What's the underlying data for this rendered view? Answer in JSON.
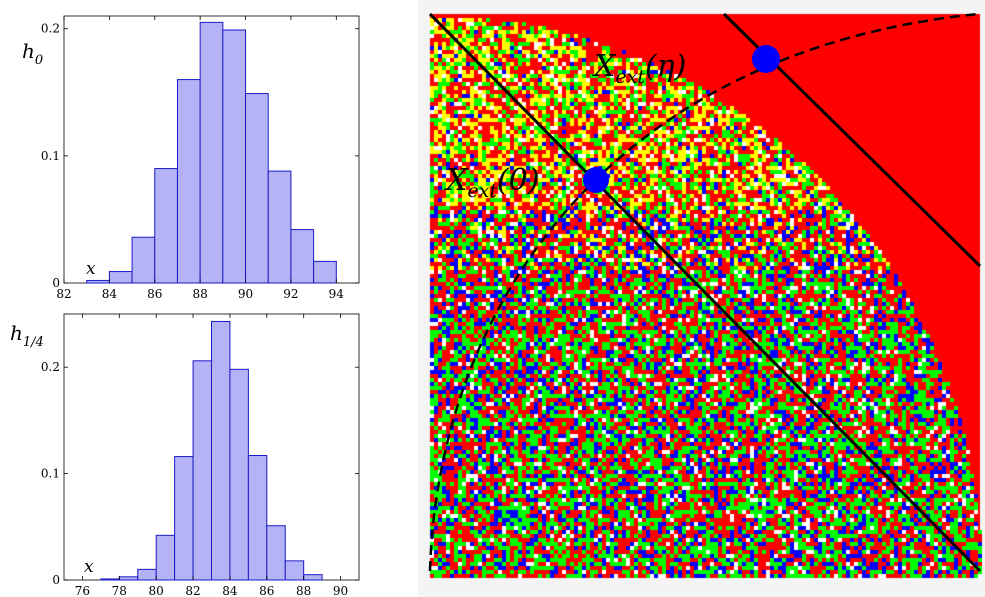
{
  "chart_data": [
    {
      "type": "bar",
      "ylabel": "h",
      "ylabel_sub": "0",
      "annotation": "x",
      "xlim": [
        82,
        95
      ],
      "ylim": [
        0,
        0.21
      ],
      "xticks": [
        82,
        84,
        86,
        88,
        90,
        92,
        94
      ],
      "yticks": [
        0,
        0.1,
        0.2
      ],
      "ytick_labels": [
        "0",
        "0.1",
        "0.2"
      ],
      "bin_edges": [
        83,
        84,
        85,
        86,
        87,
        88,
        89,
        90,
        91,
        92,
        93,
        94
      ],
      "values": [
        0.002,
        0.009,
        0.036,
        0.09,
        0.16,
        0.205,
        0.199,
        0.149,
        0.088,
        0.042,
        0.017
      ],
      "color": "#b3b3f5",
      "edge_color": "#1a1ac8"
    },
    {
      "type": "bar",
      "ylabel": "h",
      "ylabel_sub": "1/4",
      "annotation": "x",
      "xlim": [
        75,
        91
      ],
      "ylim": [
        0,
        0.25
      ],
      "xticks": [
        76,
        78,
        80,
        82,
        84,
        86,
        88,
        90
      ],
      "yticks": [
        0,
        0.1,
        0.2
      ],
      "ytick_labels": [
        "0",
        "0.1",
        "0.2"
      ],
      "bin_edges": [
        77,
        78,
        79,
        80,
        81,
        82,
        83,
        84,
        85,
        86,
        87,
        88,
        89
      ],
      "values": [
        0.001,
        0.003,
        0.01,
        0.042,
        0.116,
        0.206,
        0.243,
        0.198,
        0.117,
        0.051,
        0.018,
        0.005
      ],
      "color": "#b3b3f5",
      "edge_color": "#1a1ac8"
    },
    {
      "type": "heatmap",
      "description_free": true,
      "colors": {
        "background": "#ff0000",
        "palette": [
          "#ff0000",
          "#0000ff",
          "#00ff00",
          "#ffff00",
          "#ffffff"
        ],
        "marker": "#0000ff",
        "lines": "#000000"
      },
      "annotations": [
        {
          "main": "X",
          "sub": "ext",
          "arg": "(0)"
        },
        {
          "main": "X",
          "sub": "ext",
          "arg": "(η)"
        }
      ]
    }
  ]
}
